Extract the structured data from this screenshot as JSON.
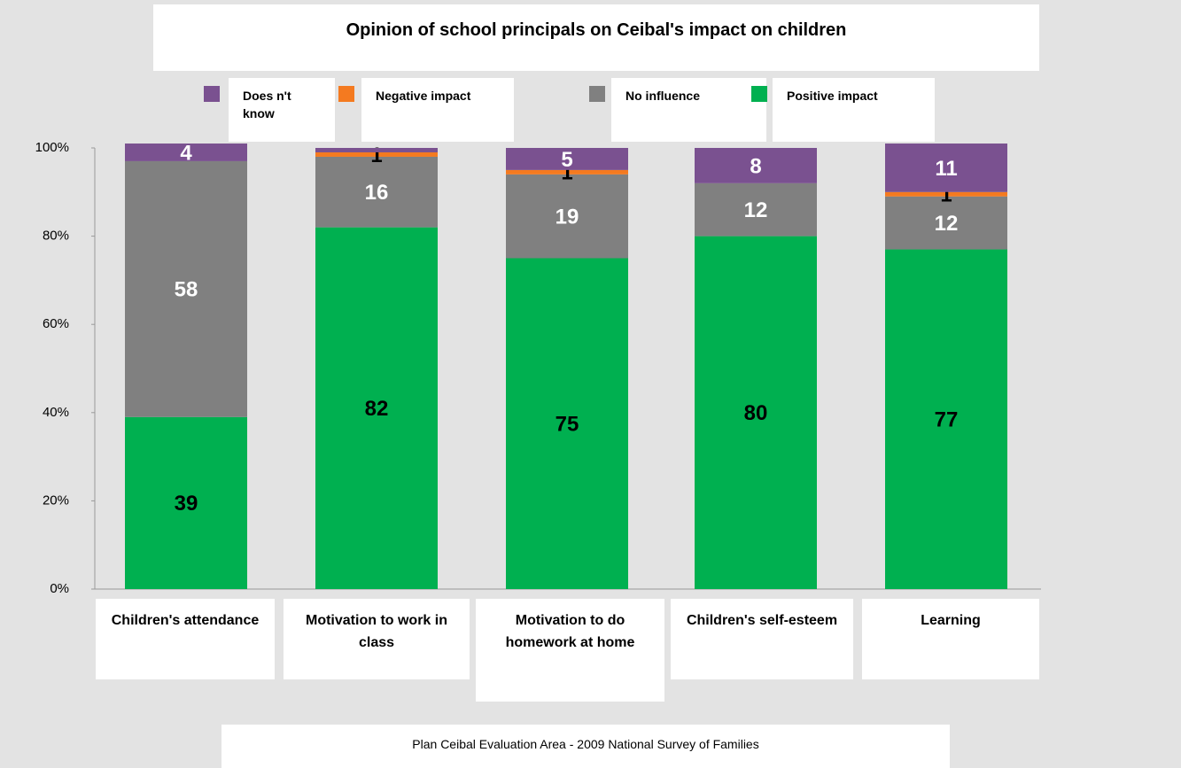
{
  "chart_data": {
    "type": "stacked_bar",
    "title": "Opinion of school principals on Ceibal's impact on children",
    "source": "Plan Ceibal Evaluation Area - 2009 National Survey of Families",
    "categories": [
      "Children's attendance",
      "Motivation to work in class",
      "Motivation to do homework at home",
      "Children's self-esteem",
      "Learning"
    ],
    "series": [
      {
        "name": "Positive impact",
        "color": "#00b050",
        "label_color": "#000000",
        "values": [
          39,
          82,
          75,
          80,
          77
        ]
      },
      {
        "name": "No influence",
        "color": "#808080",
        "label_color": "#ffffff",
        "values": [
          58,
          16,
          19,
          12,
          12
        ]
      },
      {
        "name": "Negative impact",
        "color": "#f47a20",
        "label_color": "#000000",
        "values": [
          0,
          1,
          1,
          0,
          1
        ],
        "value_labels": [
          null,
          "1",
          "1",
          null,
          "1"
        ]
      },
      {
        "name": "Does n't know",
        "color": "#7a5190",
        "label_color": "#ffffff",
        "values": [
          4,
          1,
          5,
          8,
          11
        ],
        "value_labels": [
          "4",
          null,
          "5",
          "8",
          "11"
        ]
      }
    ],
    "legend_order": [
      3,
      2,
      1,
      0
    ],
    "ylim": [
      0,
      100
    ],
    "yticks": [
      {
        "value": 0,
        "label": "0%"
      },
      {
        "value": 20,
        "label": "20%"
      },
      {
        "value": 40,
        "label": "40%"
      },
      {
        "value": 60,
        "label": "60%"
      },
      {
        "value": 80,
        "label": "80%"
      },
      {
        "value": 100,
        "label": "100%"
      }
    ]
  }
}
